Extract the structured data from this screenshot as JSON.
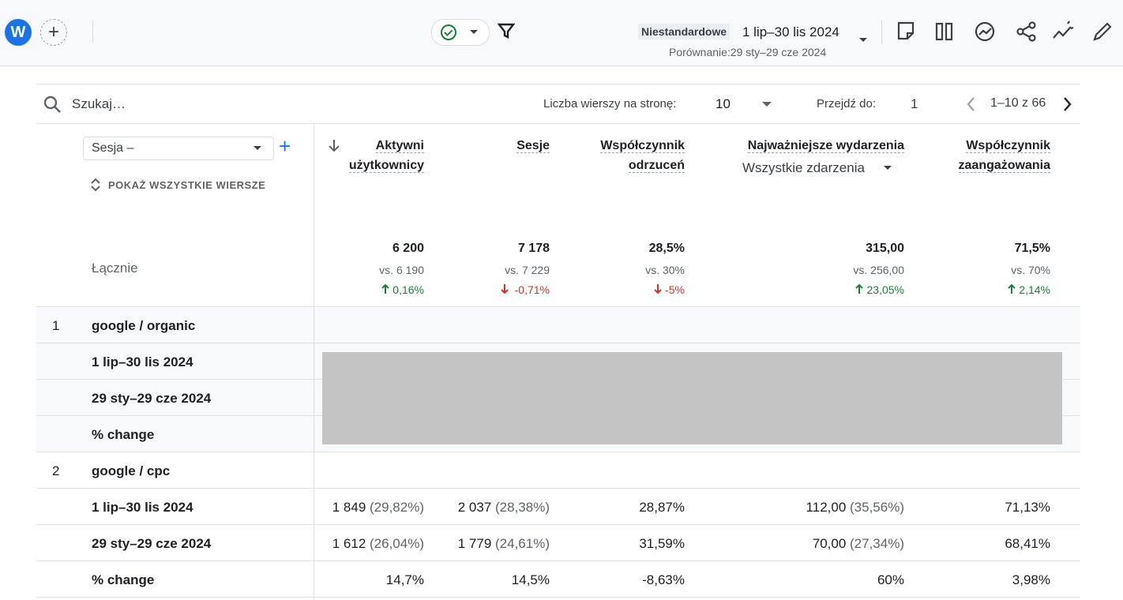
{
  "header": {
    "avatar": "W",
    "comparison_label": "Niestandardowe",
    "date_range": "1 lip–30 lis 2024",
    "compare_range": "Porównanie:29 sty–29 cze 2024"
  },
  "toolbar": {
    "search_placeholder": "Szukaj…",
    "rows_per_page_label": "Liczba wierszy na stronę:",
    "rows_per_page": "10",
    "goto_label": "Przejdź do:",
    "goto_value": "1",
    "pagination": "1–10 z 66"
  },
  "table": {
    "dimension": "Sesja –",
    "show_all": "POKAŻ WSZYSTKIE WIERSZE",
    "events_filter": "Wszystkie zdarzenia",
    "columns": [
      "Aktywni użytkownicy",
      "Sesje",
      "Współczynnik odrzuceń",
      "Najważniejsze wydarzenia",
      "Współczynnik zaangażowania"
    ],
    "totals": {
      "label": "Łącznie",
      "cells": [
        {
          "value": "6 200",
          "compare": "vs. 6 190",
          "change": "0,16%",
          "direction": "up"
        },
        {
          "value": "7 178",
          "compare": "vs. 7 229",
          "change": "-0,71%",
          "direction": "down"
        },
        {
          "value": "28,5%",
          "compare": "vs. 30%",
          "change": "-5%",
          "direction": "down"
        },
        {
          "value": "315,00",
          "compare": "vs. 256,00",
          "change": "23,05%",
          "direction": "up"
        },
        {
          "value": "71,5%",
          "compare": "vs. 70%",
          "change": "2,14%",
          "direction": "up"
        }
      ]
    },
    "rows": [
      {
        "index": "1",
        "label": "google / organic",
        "hidden": true,
        "subrows": [
          {
            "label": "1 lip–30 lis 2024"
          },
          {
            "label": "29 sty–29 cze 2024"
          },
          {
            "label": "% change"
          }
        ]
      },
      {
        "index": "2",
        "label": "google / cpc",
        "hidden": false,
        "subrows": [
          {
            "label": "1 lip–30 lis 2024",
            "cells": [
              {
                "value": "1 849",
                "share": "(29,82%)"
              },
              {
                "value": "2 037",
                "share": "(28,38%)"
              },
              {
                "value": "28,87%"
              },
              {
                "value": "112,00",
                "share": "(35,56%)"
              },
              {
                "value": "71,13%"
              }
            ]
          },
          {
            "label": "29 sty–29 cze 2024",
            "cells": [
              {
                "value": "1 612",
                "share": "(26,04%)"
              },
              {
                "value": "1 779",
                "share": "(24,61%)"
              },
              {
                "value": "31,59%"
              },
              {
                "value": "70,00",
                "share": "(27,34%)"
              },
              {
                "value": "68,41%"
              }
            ]
          },
          {
            "label": "% change",
            "cells": [
              {
                "value": "14,7%"
              },
              {
                "value": "14,5%"
              },
              {
                "value": "-8,63%"
              },
              {
                "value": "60%"
              },
              {
                "value": "3,98%"
              }
            ]
          }
        ]
      }
    ]
  }
}
